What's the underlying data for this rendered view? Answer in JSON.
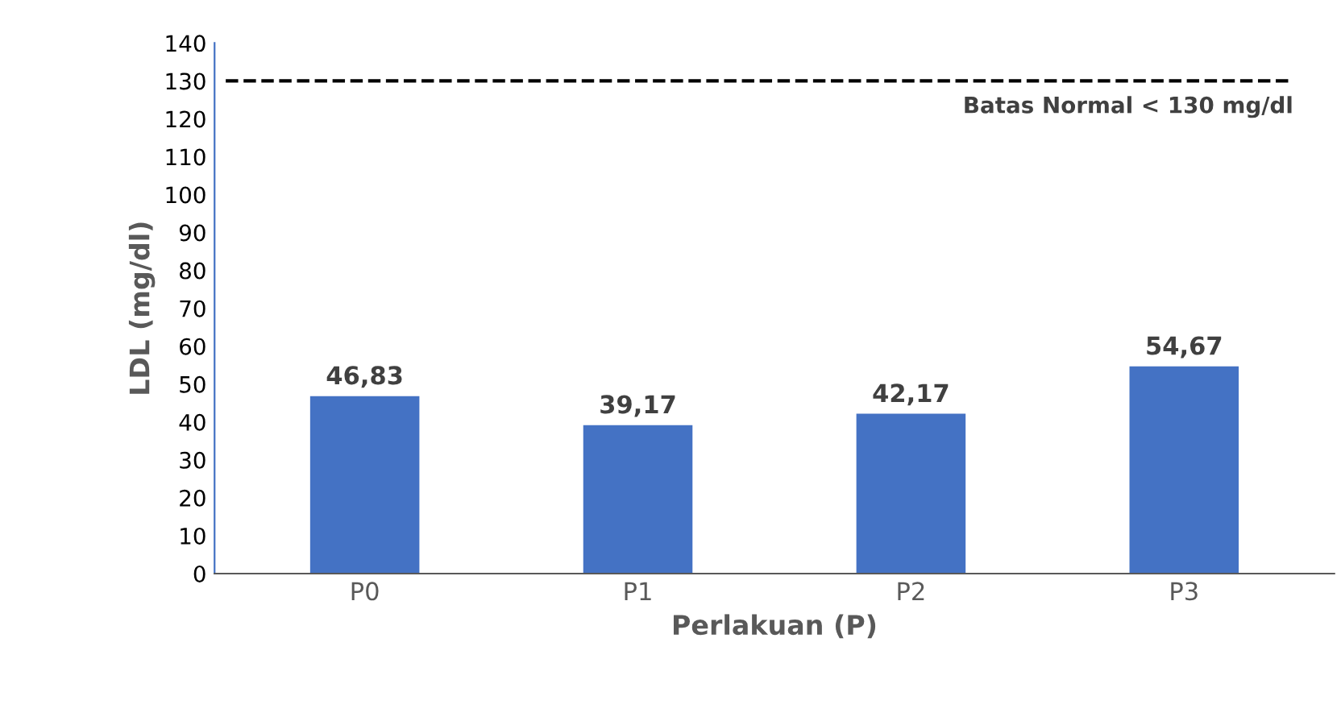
{
  "chart_data": {
    "type": "bar",
    "xlabel": "Perlakuan (P)",
    "ylabel": "LDL (mg/dl)",
    "categories": [
      "P0",
      "P1",
      "P2",
      "P3"
    ],
    "values": [
      46.83,
      39.17,
      42.17,
      54.67
    ],
    "value_labels": [
      "46,83",
      "39,17",
      "42,17",
      "54,67"
    ],
    "color": "#4472c4",
    "ylim": [
      0,
      140
    ],
    "yticks": [
      0,
      10,
      20,
      30,
      40,
      50,
      60,
      70,
      80,
      90,
      100,
      110,
      120,
      130,
      140
    ],
    "ref_lines": [
      {
        "axis": "y",
        "value": 130,
        "label": "Batas Normal < 130 mg/dl",
        "color": "#000000",
        "line_style": "dashed"
      }
    ],
    "grid": false,
    "legend": false
  }
}
